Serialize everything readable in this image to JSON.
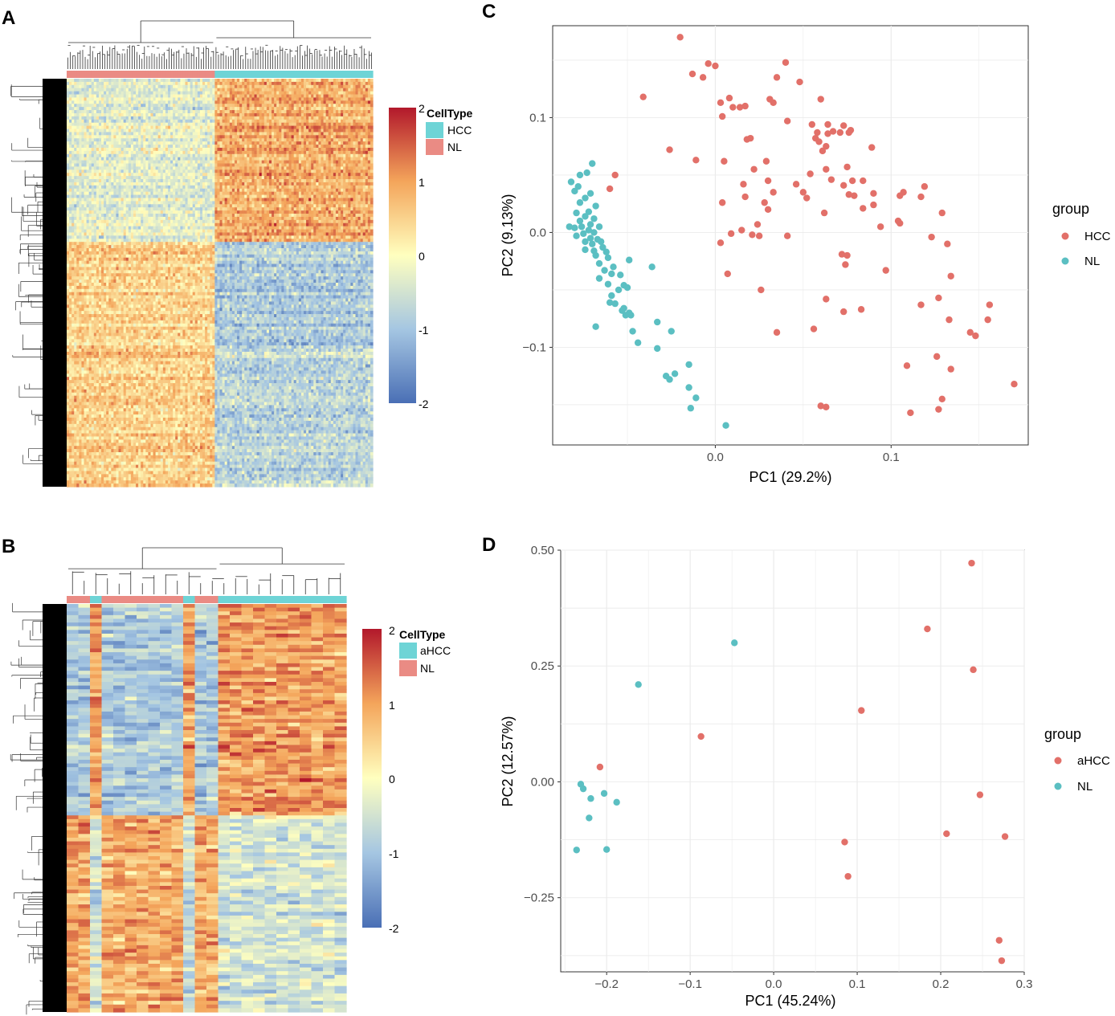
{
  "colors": {
    "hcc": "#e27069",
    "nl": "#5bbfc2",
    "ann_teal": "#6ed4d6",
    "ann_salmon": "#ea8b84",
    "grid": "#ebebeb",
    "panel_border": "#333333",
    "heat_low": "#4a6fb5",
    "heat_mid": "#ffffbf",
    "heat_high": "#c0392b"
  },
  "panels": {
    "A": {
      "label": "A"
    },
    "B": {
      "label": "B"
    },
    "C": {
      "label": "C"
    },
    "D": {
      "label": "D"
    }
  },
  "heatmap_legends": {
    "A": {
      "title": "CellType",
      "items": [
        {
          "label": "HCC",
          "color": "#6ed4d6"
        },
        {
          "label": "NL",
          "color": "#ea8b84"
        }
      ],
      "colorbar_ticks": [
        "2",
        "1",
        "0",
        "-1",
        "-2"
      ]
    },
    "B": {
      "title": "CellType",
      "items": [
        {
          "label": "aHCC",
          "color": "#6ed4d6"
        },
        {
          "label": "NL",
          "color": "#ea8b84"
        }
      ],
      "colorbar_ticks": [
        "2",
        "1",
        "0",
        "-1",
        "-2"
      ]
    }
  },
  "chart_data": [
    {
      "panel": "A",
      "type": "heatmap",
      "title": "",
      "value_range": [
        -2,
        2
      ],
      "column_groups": [
        {
          "name": "NL",
          "count": 60,
          "color": "#ea8b84"
        },
        {
          "name": "HCC",
          "count": 64,
          "color": "#6ed4d6"
        }
      ],
      "row_blocks": [
        {
          "fraction": 0.4,
          "NL_mean": -0.3,
          "HCC_mean": 0.9
        },
        {
          "fraction": 0.25,
          "NL_mean": 0.5,
          "HCC_mean": -0.9
        },
        {
          "fraction": 0.35,
          "NL_mean": 0.6,
          "HCC_mean": -0.7
        }
      ]
    },
    {
      "panel": "B",
      "type": "heatmap",
      "title": "",
      "value_range": [
        -2,
        2
      ],
      "column_annotation": [
        "NL",
        "NL",
        "aHCC",
        "NL",
        "NL",
        "NL",
        "NL",
        "NL",
        "NL",
        "NL",
        "aHCC",
        "NL",
        "NL",
        "aHCC",
        "aHCC",
        "aHCC",
        "aHCC",
        "aHCC",
        "aHCC",
        "aHCC",
        "aHCC",
        "aHCC",
        "aHCC",
        "aHCC"
      ],
      "row_blocks": [
        {
          "fraction": 0.52,
          "NL_mean": -0.9,
          "aHCC_mean": 1.0
        },
        {
          "fraction": 0.48,
          "NL_mean": 0.9,
          "aHCC_mean": -0.5
        }
      ]
    },
    {
      "panel": "C",
      "type": "scatter",
      "xlabel": "PC1 (29.2%)",
      "ylabel": "PC2 (9.13%)",
      "xlim": [
        -0.0925,
        0.178
      ],
      "ylim": [
        -0.185,
        0.18
      ],
      "xticks": [
        {
          "v": 0.0,
          "label": "0.0"
        },
        {
          "v": 0.1,
          "label": "0.1"
        }
      ],
      "yticks": [
        {
          "v": 0.1,
          "label": "0.1"
        },
        {
          "v": 0.0,
          "label": "0.0"
        },
        {
          "v": -0.1,
          "label": "−0.1"
        }
      ],
      "legend": {
        "title": "group",
        "entries": [
          "HCC",
          "NL"
        ]
      },
      "series": [
        {
          "name": "HCC",
          "points": [
            [
              -0.02,
              0.17
            ],
            [
              -0.013,
              0.138
            ],
            [
              -0.007,
              0.135
            ],
            [
              -0.004,
              0.147
            ],
            [
              0.0,
              0.145
            ],
            [
              0.04,
              0.148
            ],
            [
              0.035,
              0.135
            ],
            [
              0.048,
              0.131
            ],
            [
              -0.041,
              0.118
            ],
            [
              0.003,
              0.113
            ],
            [
              0.008,
              0.117
            ],
            [
              0.01,
              0.109
            ],
            [
              0.014,
              0.109
            ],
            [
              0.017,
              0.11
            ],
            [
              0.031,
              0.116
            ],
            [
              0.033,
              0.113
            ],
            [
              0.06,
              0.116
            ],
            [
              0.004,
              0.101
            ],
            [
              0.041,
              0.097
            ],
            [
              0.055,
              0.094
            ],
            [
              0.064,
              0.094
            ],
            [
              0.073,
              0.093
            ],
            [
              0.077,
              0.089
            ],
            [
              0.076,
              0.087
            ],
            [
              0.058,
              0.087
            ],
            [
              0.064,
              0.086
            ],
            [
              0.067,
              0.088
            ],
            [
              0.071,
              0.087
            ],
            [
              0.057,
              0.082
            ],
            [
              0.059,
              0.079
            ],
            [
              0.063,
              0.075
            ],
            [
              0.061,
              0.071
            ],
            [
              0.089,
              0.074
            ],
            [
              0.018,
              0.081
            ],
            [
              0.02,
              0.082
            ],
            [
              -0.026,
              0.072
            ],
            [
              -0.011,
              0.063
            ],
            [
              0.005,
              0.062
            ],
            [
              0.029,
              0.062
            ],
            [
              0.022,
              0.055
            ],
            [
              0.054,
              0.051
            ],
            [
              0.063,
              0.055
            ],
            [
              0.075,
              0.057
            ],
            [
              -0.057,
              0.05
            ],
            [
              -0.06,
              0.038
            ],
            [
              0.016,
              0.042
            ],
            [
              0.03,
              0.045
            ],
            [
              0.066,
              0.046
            ],
            [
              0.078,
              0.045
            ],
            [
              0.084,
              0.045
            ],
            [
              0.046,
              0.042
            ],
            [
              0.073,
              0.041
            ],
            [
              0.09,
              0.034
            ],
            [
              0.05,
              0.035
            ],
            [
              0.107,
              0.035
            ],
            [
              0.119,
              0.04
            ],
            [
              0.033,
              0.035
            ],
            [
              0.105,
              0.032
            ],
            [
              0.117,
              0.031
            ],
            [
              0.076,
              0.033
            ],
            [
              0.079,
              0.032
            ],
            [
              0.017,
              0.031
            ],
            [
              0.052,
              0.03
            ],
            [
              0.028,
              0.026
            ],
            [
              0.004,
              0.026
            ],
            [
              0.09,
              0.024
            ],
            [
              0.03,
              0.02
            ],
            [
              0.062,
              0.017
            ],
            [
              0.084,
              0.021
            ],
            [
              0.129,
              0.017
            ],
            [
              0.024,
              0.007
            ],
            [
              0.104,
              0.01
            ],
            [
              0.105,
              0.008
            ],
            [
              0.094,
              0.005
            ],
            [
              0.015,
              0.002
            ],
            [
              0.021,
              -0.002
            ],
            [
              0.025,
              -0.003
            ],
            [
              0.041,
              -0.003
            ],
            [
              0.009,
              -0.001
            ],
            [
              0.123,
              -0.004
            ],
            [
              0.003,
              -0.009
            ],
            [
              0.132,
              -0.01
            ],
            [
              0.072,
              -0.019
            ],
            [
              0.075,
              -0.02
            ],
            [
              0.074,
              -0.028
            ],
            [
              0.007,
              -0.036
            ],
            [
              0.097,
              -0.033
            ],
            [
              0.134,
              -0.038
            ],
            [
              0.026,
              -0.05
            ],
            [
              0.063,
              -0.058
            ],
            [
              0.127,
              -0.057
            ],
            [
              0.073,
              -0.069
            ],
            [
              0.083,
              -0.067
            ],
            [
              0.117,
              -0.063
            ],
            [
              0.156,
              -0.063
            ],
            [
              0.155,
              -0.076
            ],
            [
              0.133,
              -0.076
            ],
            [
              0.145,
              -0.087
            ],
            [
              0.148,
              -0.09
            ],
            [
              0.035,
              -0.087
            ],
            [
              0.056,
              -0.084
            ],
            [
              0.126,
              -0.108
            ],
            [
              0.109,
              -0.116
            ],
            [
              0.134,
              -0.119
            ],
            [
              0.17,
              -0.132
            ],
            [
              0.129,
              -0.145
            ],
            [
              0.127,
              -0.154
            ],
            [
              0.06,
              -0.151
            ],
            [
              0.063,
              -0.152
            ],
            [
              0.111,
              -0.157
            ]
          ]
        },
        {
          "name": "NL",
          "points": [
            [
              -0.07,
              0.06
            ],
            [
              -0.077,
              0.05
            ],
            [
              -0.073,
              0.052
            ],
            [
              -0.082,
              0.044
            ],
            [
              -0.078,
              0.04
            ],
            [
              -0.08,
              0.036
            ],
            [
              -0.071,
              0.034
            ],
            [
              -0.074,
              0.03
            ],
            [
              -0.077,
              0.026
            ],
            [
              -0.068,
              0.023
            ],
            [
              -0.072,
              0.018
            ],
            [
              -0.079,
              0.017
            ],
            [
              -0.074,
              0.014
            ],
            [
              -0.069,
              0.012
            ],
            [
              -0.077,
              0.01
            ],
            [
              -0.071,
              0.007
            ],
            [
              -0.076,
              0.005
            ],
            [
              -0.08,
              0.004
            ],
            [
              -0.083,
              0.005
            ],
            [
              -0.066,
              0.005
            ],
            [
              -0.072,
              0.002
            ],
            [
              -0.069,
              0.0
            ],
            [
              -0.075,
              -0.001
            ],
            [
              -0.079,
              -0.003
            ],
            [
              -0.071,
              -0.005
            ],
            [
              -0.067,
              -0.006
            ],
            [
              -0.074,
              -0.008
            ],
            [
              -0.07,
              -0.01
            ],
            [
              -0.065,
              -0.008
            ],
            [
              -0.064,
              -0.013
            ],
            [
              -0.069,
              -0.016
            ],
            [
              -0.062,
              -0.017
            ],
            [
              -0.068,
              -0.02
            ],
            [
              -0.074,
              -0.015
            ],
            [
              -0.061,
              -0.022
            ],
            [
              -0.066,
              -0.027
            ],
            [
              -0.058,
              -0.03
            ],
            [
              -0.063,
              -0.033
            ],
            [
              -0.059,
              -0.036
            ],
            [
              -0.054,
              -0.037
            ],
            [
              -0.066,
              -0.04
            ],
            [
              -0.049,
              -0.024
            ],
            [
              -0.036,
              -0.03
            ],
            [
              -0.061,
              -0.045
            ],
            [
              -0.052,
              -0.046
            ],
            [
              -0.055,
              -0.05
            ],
            [
              -0.05,
              -0.048
            ],
            [
              -0.059,
              -0.055
            ],
            [
              -0.06,
              -0.061
            ],
            [
              -0.057,
              -0.062
            ],
            [
              -0.052,
              -0.066
            ],
            [
              -0.053,
              -0.068
            ],
            [
              -0.049,
              -0.07
            ],
            [
              -0.048,
              -0.072
            ],
            [
              -0.051,
              -0.072
            ],
            [
              -0.068,
              -0.082
            ],
            [
              -0.033,
              -0.078
            ],
            [
              -0.025,
              -0.086
            ],
            [
              -0.047,
              -0.086
            ],
            [
              -0.033,
              -0.101
            ],
            [
              -0.044,
              -0.096
            ],
            [
              -0.015,
              -0.115
            ],
            [
              -0.023,
              -0.123
            ],
            [
              -0.028,
              -0.125
            ],
            [
              -0.026,
              -0.128
            ],
            [
              -0.015,
              -0.135
            ],
            [
              -0.011,
              -0.144
            ],
            [
              -0.014,
              -0.153
            ],
            [
              0.006,
              -0.168
            ]
          ]
        }
      ]
    },
    {
      "panel": "D",
      "type": "scatter",
      "xlabel": "PC1 (45.24%)",
      "ylabel": "PC2 (12.57%)",
      "xlim": [
        -0.255,
        0.3
      ],
      "ylim": [
        -0.41,
        0.5
      ],
      "xticks": [
        {
          "v": -0.2,
          "label": "−0.2"
        },
        {
          "v": -0.1,
          "label": "−0.1"
        },
        {
          "v": 0.0,
          "label": "0.0"
        },
        {
          "v": 0.1,
          "label": "0.1"
        },
        {
          "v": 0.2,
          "label": "0.2"
        },
        {
          "v": 0.3,
          "label": "0.3"
        }
      ],
      "yticks": [
        {
          "v": 0.5,
          "label": "0.50"
        },
        {
          "v": 0.25,
          "label": "0.25"
        },
        {
          "v": 0.0,
          "label": "0.00"
        },
        {
          "v": -0.25,
          "label": "−0.25"
        }
      ],
      "legend": {
        "title": "group",
        "entries": [
          "aHCC",
          "NL"
        ]
      },
      "series": [
        {
          "name": "aHCC",
          "points": [
            [
              0.237,
              0.472
            ],
            [
              0.184,
              0.33
            ],
            [
              0.239,
              0.242
            ],
            [
              0.105,
              0.154
            ],
            [
              -0.087,
              0.098
            ],
            [
              -0.208,
              0.032
            ],
            [
              0.247,
              -0.028
            ],
            [
              0.207,
              -0.112
            ],
            [
              0.277,
              -0.118
            ],
            [
              0.085,
              -0.13
            ],
            [
              0.089,
              -0.204
            ],
            [
              0.27,
              -0.342
            ],
            [
              0.273,
              -0.386
            ]
          ]
        },
        {
          "name": "NL",
          "points": [
            [
              -0.047,
              0.3
            ],
            [
              -0.162,
              0.21
            ],
            [
              -0.231,
              -0.005
            ],
            [
              -0.228,
              -0.015
            ],
            [
              -0.203,
              -0.025
            ],
            [
              -0.219,
              -0.036
            ],
            [
              -0.188,
              -0.044
            ],
            [
              -0.221,
              -0.078
            ],
            [
              -0.236,
              -0.147
            ],
            [
              -0.2,
              -0.146
            ]
          ]
        }
      ]
    }
  ]
}
